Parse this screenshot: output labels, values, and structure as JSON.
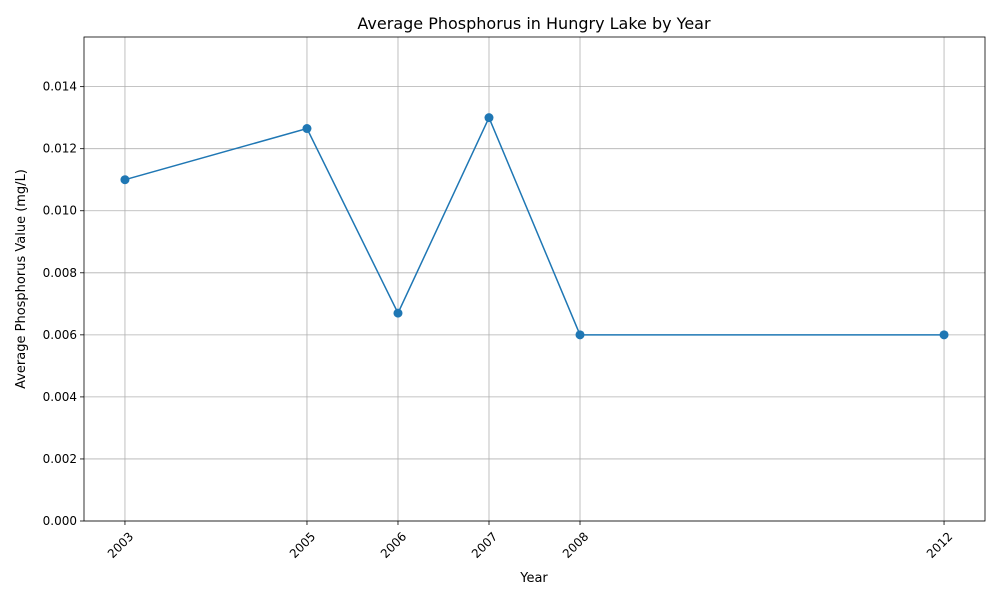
{
  "chart_data": {
    "type": "line",
    "title": "Average Phosphorus in Hungry Lake by Year",
    "xlabel": "Year",
    "ylabel": "Average Phosphorus Value (mg/L)",
    "x": [
      2003,
      2005,
      2006,
      2007,
      2008,
      2012
    ],
    "x_tick_labels": [
      "2003",
      "2005",
      "2006",
      "2007",
      "2008",
      "2012"
    ],
    "y": [
      0.011,
      0.01265,
      0.0067,
      0.013,
      0.006,
      0.006
    ],
    "xlim": [
      2002.55,
      2012.45
    ],
    "ylim": [
      0,
      0.0156
    ],
    "y_ticks": [
      0,
      0.002,
      0.004,
      0.006,
      0.008,
      0.01,
      0.012,
      0.014
    ],
    "y_tick_labels": [
      "0.000",
      "0.002",
      "0.004",
      "0.006",
      "0.008",
      "0.010",
      "0.012",
      "0.014"
    ],
    "grid": true,
    "marker": "circle",
    "line_color": "#1f77b4",
    "x_tick_rotation_deg": 45
  }
}
